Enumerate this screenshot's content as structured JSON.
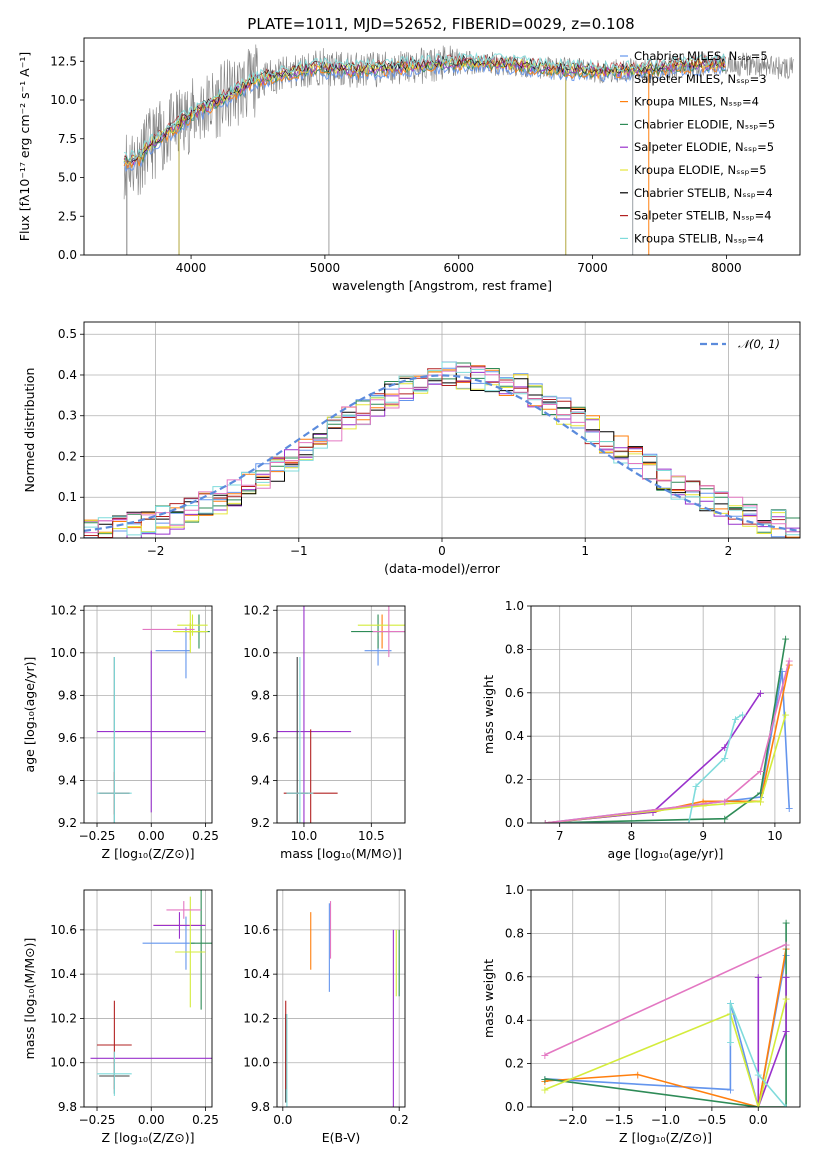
{
  "figure_title": "PLATE=1011, MJD=52652, FIBERID=0029, z=0.108",
  "colors": [
    "#6495ed",
    "#ff7f0e",
    "#2e8b57",
    "#9932cc",
    "#ffe135",
    "#000000",
    "#b22222",
    "#7fdbdb"
  ],
  "chart_data": [
    {
      "id": "spectrum",
      "type": "line",
      "xlabel": "wavelength [Angstrom, rest frame]",
      "ylabel": "Flux [fλ10⁻¹⁷ erg cm⁻² s⁻¹ A⁻¹]",
      "xlim": [
        3200,
        8550
      ],
      "ylim": [
        0,
        14
      ],
      "xticks": [
        "4000",
        "5000",
        "6000",
        "7000",
        "8000"
      ],
      "yticks": [
        "0.0",
        "2.5",
        "5.0",
        "7.5",
        "10.0",
        "12.5"
      ],
      "grid": false,
      "legend_position": "upper right",
      "series": [
        {
          "name": "Chabrier MILES, N_SSP=5",
          "color": "#6495ed",
          "lw": 1.0
        },
        {
          "name": "Salpeter MILES, N_SSP=3",
          "color": "#9aa0a6",
          "lw": 0.7
        },
        {
          "name": "Kroupa MILES, N_SSP=4",
          "color": "#ff7f0e",
          "lw": 1.0
        },
        {
          "name": "Chabrier ELODIE, N_SSP=5",
          "color": "#2e8b57",
          "lw": 0.8
        },
        {
          "name": "Salpeter ELODIE, N_SSP=5",
          "color": "#9932cc",
          "lw": 0.8
        },
        {
          "name": "Kroupa ELODIE, N_SSP=5",
          "color": "#e6e63c",
          "lw": 0.8
        },
        {
          "name": "Chabrier STELIB, N_SSP=4",
          "color": "#000000",
          "lw": 0.6
        },
        {
          "name": "Salpeter STELIB, N_SSP=4",
          "color": "#b22222",
          "lw": 0.6
        },
        {
          "name": "Kroupa STELIB, N_SSP=4",
          "color": "#7fdbdb",
          "lw": 1.0
        }
      ]
    },
    {
      "id": "residuals",
      "type": "line",
      "xlabel": "(data-model)/error",
      "ylabel": "Normed distribution",
      "xlim": [
        -2.5,
        2.5
      ],
      "ylim": [
        0,
        0.53
      ],
      "xticks": [
        "−2",
        "−1",
        "0",
        "1",
        "2"
      ],
      "yticks": [
        "0.0",
        "0.1",
        "0.2",
        "0.3",
        "0.4",
        "0.5"
      ],
      "grid": true,
      "legend_position": "upper right",
      "reference_curve": "𝒩(0, 1)"
    },
    {
      "id": "age_vs_Z",
      "type": "scatter",
      "xlabel": "Z [log₁₀(Z/Z⊙)]",
      "ylabel": "age [log₁₀(age/yr)]",
      "xlim": [
        -0.31,
        0.28
      ],
      "ylim": [
        9.2,
        10.22
      ],
      "xticks": [
        "−0.25",
        "0.00",
        "0.25"
      ],
      "yticks": [
        "9.2",
        "9.4",
        "9.6",
        "9.8",
        "10.0",
        "10.2"
      ],
      "grid": true
    },
    {
      "id": "age_vs_mass",
      "type": "scatter",
      "xlabel": "mass [log₁₀(M/M⊙)]",
      "xlim": [
        9.8,
        10.75
      ],
      "ylim": [
        9.2,
        10.22
      ],
      "xticks": [
        "10.0",
        "10.5"
      ],
      "yticks": [
        "9.2",
        "9.4",
        "9.6",
        "9.8",
        "10.0",
        "10.2"
      ],
      "grid": true
    },
    {
      "id": "weight_vs_age",
      "type": "line",
      "xlabel": "age [log₁₀(age/yr)]",
      "ylabel": "mass weight",
      "xlim": [
        6.6,
        10.35
      ],
      "ylim": [
        0,
        1
      ],
      "xticks": [
        "7",
        "8",
        "9",
        "10"
      ],
      "yticks": [
        "0.0",
        "0.2",
        "0.4",
        "0.6",
        "0.8",
        "1.0"
      ],
      "grid": true
    },
    {
      "id": "mass_vs_Z",
      "type": "scatter",
      "xlabel": "Z [log₁₀(Z/Z⊙)]",
      "ylabel": "mass [log₁₀(M/M⊙)]",
      "xlim": [
        -0.31,
        0.28
      ],
      "ylim": [
        9.8,
        10.78
      ],
      "xticks": [
        "−0.25",
        "0.00",
        "0.25"
      ],
      "yticks": [
        "9.8",
        "10.0",
        "10.2",
        "10.4",
        "10.6"
      ],
      "grid": true
    },
    {
      "id": "mass_vs_EBV",
      "type": "scatter",
      "xlabel": "E(B-V)",
      "xlim": [
        -0.01,
        0.21
      ],
      "ylim": [
        9.8,
        10.78
      ],
      "xticks": [
        "0.0",
        "0.2"
      ],
      "yticks": [
        "9.8",
        "10.0",
        "10.2",
        "10.4",
        "10.6"
      ],
      "grid": true
    },
    {
      "id": "weight_vs_Z",
      "type": "line",
      "xlabel": "Z [log₁₀(Z/Z⊙)]",
      "ylabel": "mass weight",
      "xlim": [
        -2.45,
        0.45
      ],
      "ylim": [
        0,
        1
      ],
      "xticks": [
        "−2.0",
        "−1.5",
        "−1.0",
        "−0.5",
        "0.0"
      ],
      "yticks": [
        "0.0",
        "0.2",
        "0.4",
        "0.6",
        "0.8",
        "1.0"
      ],
      "grid": true
    }
  ]
}
